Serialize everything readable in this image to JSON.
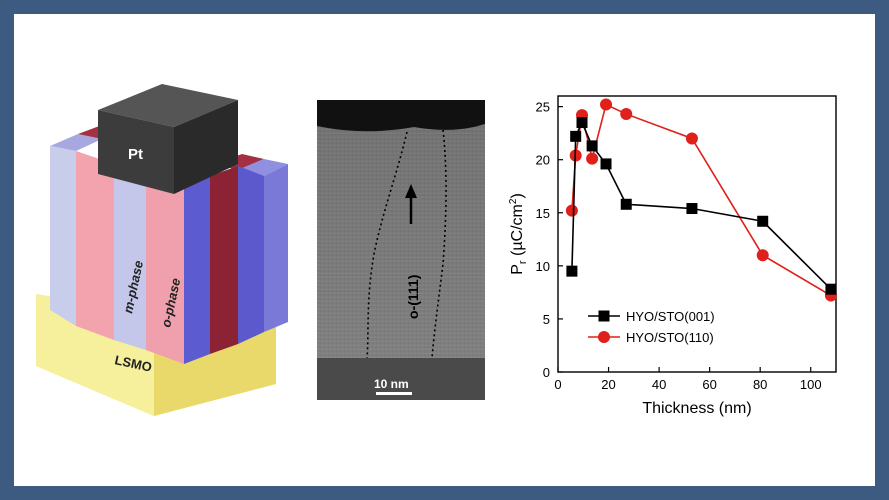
{
  "schematic": {
    "electrode_label": "Pt",
    "phase_label_m": "m-phase",
    "phase_label_o": "o-phase",
    "substrate_label": "LSMO"
  },
  "tem": {
    "domain_label": "o-(111)",
    "scalebar_label": "10 nm"
  },
  "chart_data": {
    "type": "line",
    "xlabel": "Thickness (nm)",
    "ylabel": "P_r (µC/cm²)",
    "xlim": [
      0,
      110
    ],
    "ylim": [
      0,
      26
    ],
    "xticks": [
      0,
      20,
      40,
      60,
      80,
      100
    ],
    "yticks": [
      0,
      5,
      10,
      15,
      20,
      25
    ],
    "legend_position": "bottom-right",
    "series": [
      {
        "name": "HYO/STO(001)",
        "color": "#000000",
        "marker": "square",
        "x": [
          5.5,
          7,
          9.5,
          13.5,
          19,
          27,
          53,
          81,
          108
        ],
        "y": [
          9.5,
          22.2,
          23.5,
          21.3,
          19.6,
          15.8,
          15.4,
          14.2,
          7.8
        ]
      },
      {
        "name": "HYO/STO(110)",
        "color": "#e0201a",
        "marker": "circle",
        "x": [
          5.5,
          7,
          9.5,
          13.5,
          19,
          27,
          53,
          81,
          108
        ],
        "y": [
          15.2,
          20.4,
          24.2,
          20.1,
          25.2,
          24.3,
          22,
          11,
          7.2
        ]
      }
    ]
  }
}
